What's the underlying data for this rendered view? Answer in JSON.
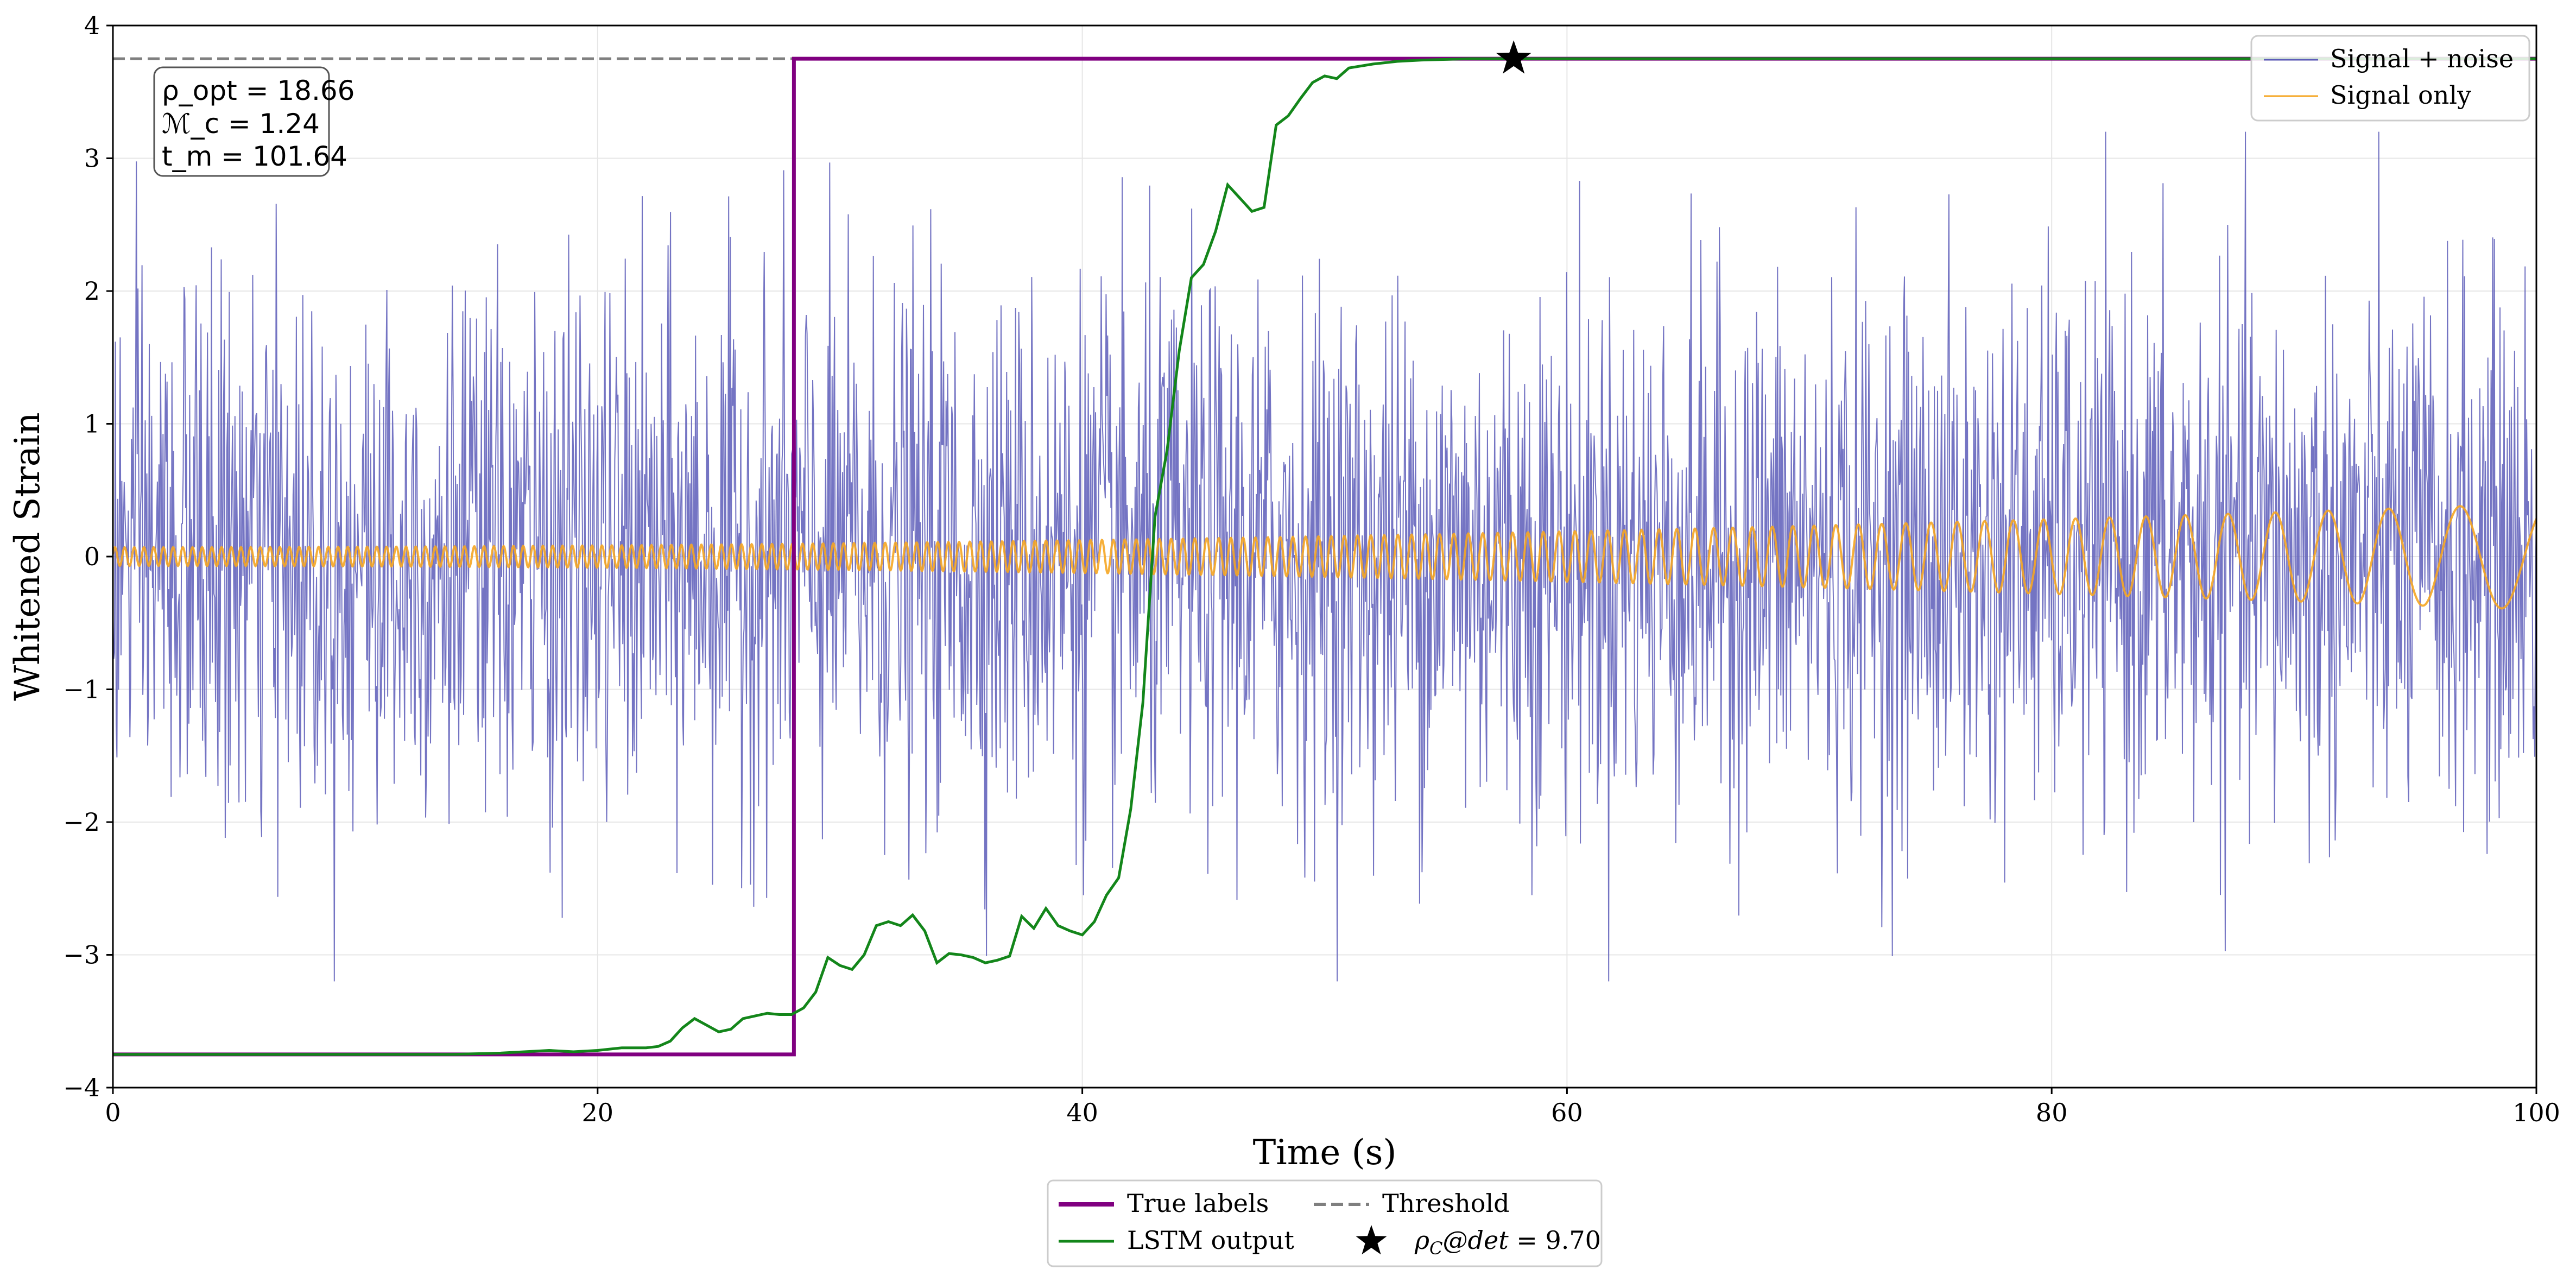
{
  "chart_data": {
    "type": "line",
    "title": "",
    "xlabel": "Time (s)",
    "ylabel": "Whitened Strain",
    "xlim": [
      0,
      100
    ],
    "ylim": [
      -4,
      4
    ],
    "xticks": [
      0,
      20,
      40,
      60,
      80,
      100
    ],
    "yticks": [
      -4,
      -3,
      -2,
      -1,
      0,
      1,
      2,
      3,
      4
    ],
    "xtick_labels": [
      "0",
      "20",
      "40",
      "60",
      "80",
      "100"
    ],
    "ytick_labels": [
      "−4",
      "−3",
      "−2",
      "−1",
      "0",
      "1",
      "2",
      "3",
      "4"
    ],
    "grid": true,
    "colors": {
      "noise": "#5c5cb8",
      "signal": "#f5a623",
      "true_labels": "#800080",
      "lstm": "#13861a",
      "threshold": "#7f7f7f",
      "star": "#000000"
    },
    "series": [
      {
        "name": "Signal + noise",
        "kind": "noise",
        "description_values": {
          "x_start": 0,
          "x_end": 100,
          "n_points": 3000,
          "std": 1.0,
          "max_abs": 3.2
        }
      },
      {
        "name": "Signal only",
        "kind": "chirp",
        "description_values": {
          "x_start": 0,
          "x_end": 100,
          "amp_start": 0.07,
          "amp_end": 0.4,
          "freq_start": 2.5,
          "freq_end": 0.25
        }
      },
      {
        "name": "True labels",
        "x": [
          0,
          28.1,
          28.1,
          100
        ],
        "y": [
          -3.75,
          -3.75,
          3.75,
          3.75
        ]
      },
      {
        "name": "LSTM output",
        "x": [
          0,
          14,
          16,
          18,
          19,
          20,
          21,
          22,
          22.5,
          23,
          23.5,
          24,
          24.5,
          25,
          25.5,
          26,
          27,
          27.5,
          28,
          28.5,
          29,
          29.5,
          30,
          30.5,
          31,
          31.5,
          32,
          32.5,
          33,
          33.5,
          34,
          34.5,
          35,
          35.5,
          36,
          36.5,
          37,
          37.5,
          38,
          38.5,
          39,
          39.5,
          40,
          40.5,
          41,
          41.5,
          42,
          42.5,
          43,
          43.5,
          44,
          44.5,
          45,
          45.5,
          46,
          46.5,
          47,
          47.5,
          48,
          48.5,
          49,
          49.5,
          50,
          50.5,
          51,
          52,
          53,
          54,
          56,
          58,
          60,
          70,
          80,
          90,
          100
        ],
        "y": [
          -3.75,
          -3.75,
          -3.74,
          -3.72,
          -3.73,
          -3.72,
          -3.7,
          -3.7,
          -3.69,
          -3.65,
          -3.55,
          -3.48,
          -3.53,
          -3.58,
          -3.56,
          -3.48,
          -3.44,
          -3.45,
          -3.45,
          -3.4,
          -3.28,
          -3.02,
          -3.08,
          -3.11,
          -3.0,
          -2.78,
          -2.75,
          -2.78,
          -2.7,
          -2.82,
          -3.06,
          -2.99,
          -3.0,
          -3.02,
          -3.06,
          -3.04,
          -3.01,
          -2.71,
          -2.8,
          -2.65,
          -2.78,
          -2.82,
          -2.85,
          -2.75,
          -2.55,
          -2.42,
          -1.9,
          -1.1,
          0.3,
          0.8,
          1.55,
          2.1,
          2.2,
          2.45,
          2.8,
          2.7,
          2.6,
          2.63,
          3.25,
          3.32,
          3.45,
          3.57,
          3.62,
          3.6,
          3.68,
          3.71,
          3.73,
          3.74,
          3.75,
          3.75,
          3.75,
          3.75,
          3.75,
          3.75,
          3.75
        ]
      },
      {
        "name": "Threshold",
        "y": 3.75
      },
      {
        "name": "ρ_C@det = 9.70",
        "x": [
          57.8
        ],
        "y": [
          3.75
        ]
      }
    ],
    "legend_upper": [
      {
        "label": "Signal + noise",
        "key": "noise"
      },
      {
        "label": "Signal only",
        "key": "signal"
      }
    ],
    "legend_lower": [
      {
        "label": "True labels",
        "key": "true_labels"
      },
      {
        "label": "Threshold",
        "key": "threshold"
      },
      {
        "label": "LSTM output",
        "key": "lstm"
      },
      {
        "label": "ρ_C@det = 9.70",
        "key": "star"
      }
    ],
    "annotation": {
      "lines": [
        "ρ_opt = 18.66",
        "ℳ_c = 1.24",
        "t_m = 101.64"
      ],
      "placement": "top-left"
    }
  }
}
